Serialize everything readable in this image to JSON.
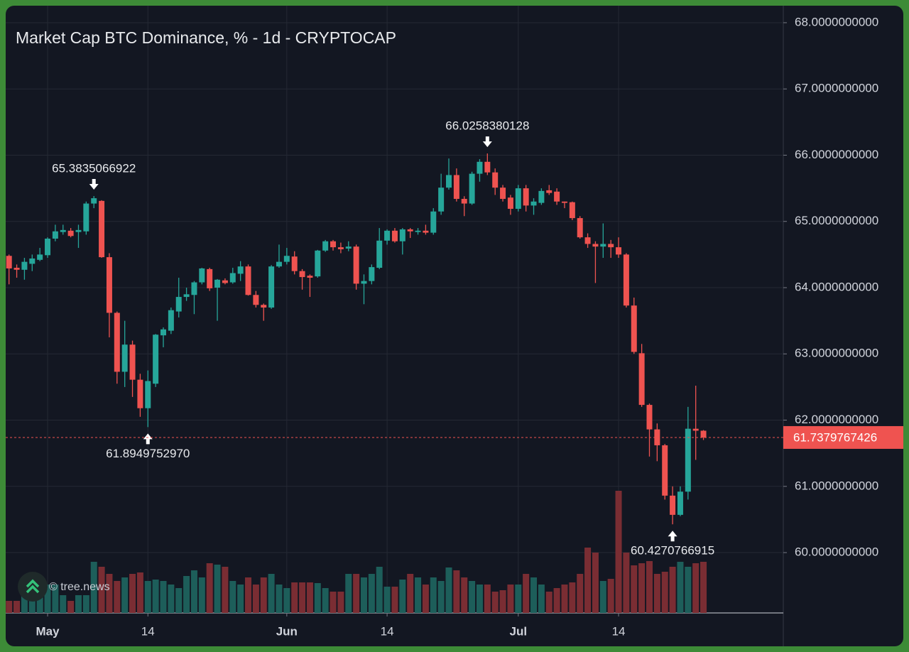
{
  "chart_data": {
    "type": "candlestick",
    "title": "Market Cap BTC Dominance, % - 1d - CRYPTOCAP",
    "watermark": "© tree.news",
    "up_color": "#26a69a",
    "down_color": "#ef5350",
    "volume_up_color": "#1d5e5a",
    "volume_down_color": "#7a2d33",
    "grid": true,
    "x": [
      "04-26",
      "04-27",
      "04-28",
      "04-29",
      "04-30",
      "05-01",
      "05-02",
      "05-03",
      "05-04",
      "05-05",
      "05-06",
      "05-07",
      "05-08",
      "05-09",
      "05-10",
      "05-11",
      "05-12",
      "05-13",
      "05-14",
      "05-15",
      "05-16",
      "05-17",
      "05-18",
      "05-19",
      "05-20",
      "05-21",
      "05-22",
      "05-23",
      "05-24",
      "05-25",
      "05-26",
      "05-27",
      "05-28",
      "05-29",
      "05-30",
      "05-31",
      "06-01",
      "06-02",
      "06-03",
      "06-04",
      "06-05",
      "06-06",
      "06-07",
      "06-08",
      "06-09",
      "06-10",
      "06-11",
      "06-12",
      "06-13",
      "06-14",
      "06-15",
      "06-16",
      "06-17",
      "06-18",
      "06-19",
      "06-20",
      "06-21",
      "06-22",
      "06-23",
      "06-24",
      "06-25",
      "06-26",
      "06-27",
      "06-28",
      "06-29",
      "06-30",
      "07-01",
      "07-02",
      "07-03",
      "07-04",
      "07-05",
      "07-06",
      "07-07",
      "07-08",
      "07-09",
      "07-10",
      "07-11",
      "07-12",
      "07-13",
      "07-14",
      "07-15",
      "07-16",
      "07-17",
      "07-18",
      "07-19",
      "07-20",
      "07-21",
      "07-22",
      "07-23",
      "07-24",
      "07-25"
    ],
    "open": [
      64.48,
      64.3,
      64.27,
      64.36,
      64.42,
      64.49,
      64.74,
      64.84,
      64.86,
      64.84,
      64.85,
      65.27,
      65.31,
      64.46,
      63.62,
      62.73,
      63.14,
      62.61,
      62.18,
      62.55,
      63.28,
      63.35,
      63.64,
      63.86,
      63.89,
      64.08,
      64.28,
      64.0,
      64.11,
      64.08,
      64.21,
      64.32,
      63.89,
      63.74,
      63.7,
      64.32,
      64.39,
      64.47,
      64.25,
      64.18,
      64.17,
      64.56,
      64.7,
      64.61,
      64.59,
      64.62,
      64.06,
      64.1,
      64.3,
      64.71,
      64.86,
      64.7,
      64.88,
      64.84,
      64.86,
      64.83,
      65.15,
      65.51,
      65.7,
      65.34,
      65.27,
      65.72,
      65.9,
      65.74,
      65.51,
      65.36,
      65.19,
      65.5,
      65.24,
      65.28,
      65.47,
      65.45,
      65.3,
      65.29,
      65.05,
      64.76,
      64.66,
      64.62,
      64.66,
      64.61,
      64.5,
      63.73,
      63.01,
      62.23,
      61.86,
      61.62,
      60.86,
      60.57,
      60.92,
      61.87,
      61.84
    ],
    "high": [
      64.5,
      64.35,
      64.45,
      64.5,
      64.6,
      64.76,
      64.95,
      64.95,
      64.9,
      64.95,
      65.3,
      65.3835066922,
      65.32,
      64.52,
      63.64,
      63.5,
      63.2,
      62.7,
      62.75,
      63.3,
      63.4,
      63.7,
      64.15,
      64.0,
      64.1,
      64.3,
      64.3,
      64.13,
      64.14,
      64.3,
      64.4,
      64.35,
      63.95,
      63.76,
      64.34,
      64.65,
      64.6,
      64.55,
      64.28,
      64.2,
      64.57,
      64.72,
      64.72,
      64.68,
      64.7,
      64.65,
      64.2,
      64.35,
      64.9,
      64.88,
      64.9,
      64.9,
      64.9,
      64.9,
      64.95,
      65.2,
      65.72,
      65.95,
      65.8,
      65.38,
      65.75,
      65.94,
      66.0258380128,
      65.8,
      65.55,
      65.4,
      65.55,
      65.55,
      65.35,
      65.5,
      65.55,
      65.5,
      65.3,
      65.3,
      65.08,
      64.82,
      64.7,
      64.97,
      64.72,
      64.76,
      64.52,
      63.85,
      63.15,
      62.25,
      61.95,
      61.64,
      61.0,
      61.0,
      62.2,
      62.52,
      61.85
    ],
    "low": [
      64.05,
      64.15,
      64.12,
      64.25,
      64.4,
      64.45,
      64.7,
      64.8,
      64.76,
      64.6,
      64.8,
      65.2,
      64.45,
      63.25,
      62.55,
      62.5,
      62.35,
      62.05,
      61.894975297,
      62.5,
      63.1,
      63.3,
      63.55,
      63.8,
      63.6,
      64.05,
      63.95,
      63.5,
      64.05,
      64.06,
      64.1,
      63.88,
      63.7,
      63.5,
      63.68,
      64.3,
      64.35,
      64.2,
      63.97,
      63.86,
      64.15,
      64.54,
      64.56,
      64.52,
      64.55,
      63.97,
      63.75,
      64.05,
      64.28,
      64.65,
      64.68,
      64.5,
      64.75,
      64.8,
      64.8,
      64.8,
      65.1,
      65.48,
      65.3,
      65.08,
      65.25,
      65.6,
      65.7,
      65.4,
      65.3,
      65.1,
      65.15,
      65.15,
      65.1,
      65.25,
      65.4,
      65.25,
      65.2,
      65.02,
      64.74,
      64.6,
      64.07,
      64.45,
      64.45,
      64.45,
      63.7,
      63.0,
      62.2,
      61.45,
      61.38,
      60.8,
      60.4270766915,
      60.55,
      60.8,
      61.4,
      61.7
    ],
    "close": [
      64.29,
      64.27,
      64.39,
      64.44,
      64.5,
      64.74,
      64.85,
      64.87,
      64.78,
      64.87,
      65.27,
      65.35,
      64.46,
      63.62,
      62.73,
      63.14,
      62.61,
      62.18,
      62.59,
      63.29,
      63.37,
      63.66,
      63.86,
      63.9,
      64.08,
      64.29,
      63.99,
      64.12,
      64.07,
      64.22,
      64.32,
      63.89,
      63.74,
      63.7,
      64.32,
      64.39,
      64.48,
      64.25,
      64.16,
      64.15,
      64.56,
      64.7,
      64.61,
      64.58,
      64.62,
      64.06,
      64.1,
      64.31,
      64.71,
      64.86,
      64.7,
      64.88,
      64.85,
      64.86,
      64.83,
      65.15,
      65.51,
      65.7,
      65.34,
      65.27,
      65.72,
      65.9,
      65.74,
      65.51,
      65.34,
      65.19,
      65.5,
      65.24,
      65.3,
      65.46,
      65.43,
      65.3,
      65.28,
      65.05,
      64.76,
      64.66,
      64.62,
      64.66,
      64.61,
      64.5,
      63.73,
      63.03,
      62.23,
      61.86,
      61.62,
      60.86,
      60.57,
      60.92,
      61.87,
      61.84,
      61.7379767426
    ],
    "volume": [
      17,
      17,
      30,
      30,
      35,
      40,
      40,
      25,
      17,
      25,
      25,
      72,
      65,
      55,
      45,
      50,
      55,
      57,
      45,
      47,
      45,
      40,
      35,
      52,
      60,
      50,
      70,
      68,
      65,
      45,
      40,
      50,
      40,
      50,
      55,
      40,
      35,
      43,
      43,
      43,
      42,
      35,
      30,
      30,
      55,
      55,
      50,
      55,
      65,
      37,
      37,
      47,
      55,
      50,
      40,
      50,
      45,
      64,
      60,
      50,
      45,
      40,
      40,
      30,
      32,
      40,
      40,
      55,
      50,
      40,
      30,
      35,
      40,
      43,
      55,
      92,
      85,
      45,
      48,
      172,
      85,
      67,
      70,
      73,
      55,
      58,
      65,
      72,
      65,
      70,
      72
    ],
    "ylim": [
      59.089,
      68.257
    ],
    "yticks": [
      {
        "value": 60,
        "label": "60.0000000000"
      },
      {
        "value": 61,
        "label": "61.0000000000"
      },
      {
        "value": 62,
        "label": "62.0000000000"
      },
      {
        "value": 63,
        "label": "63.0000000000"
      },
      {
        "value": 64,
        "label": "64.0000000000"
      },
      {
        "value": 65,
        "label": "65.0000000000"
      },
      {
        "value": 66,
        "label": "66.0000000000"
      },
      {
        "value": 67,
        "label": "67.0000000000"
      },
      {
        "value": 68,
        "label": "68.0000000000"
      }
    ],
    "xticks": [
      {
        "value": "05-01",
        "label": "May"
      },
      {
        "value": "05-14",
        "label": "14"
      },
      {
        "value": "06-01",
        "label": "Jun"
      },
      {
        "value": "06-14",
        "label": "14"
      },
      {
        "value": "07-01",
        "label": "Jul"
      },
      {
        "value": "07-14",
        "label": "14"
      }
    ],
    "annotations": [
      {
        "value": 65.3835066922,
        "label": "65.3835066922"
      },
      {
        "value": 61.894975297,
        "label": "61.8949752970"
      },
      {
        "value": 66.0258380128,
        "label": "66.0258380128"
      },
      {
        "value": 60.4270766915,
        "label": "60.4270766915"
      }
    ],
    "last_price": {
      "value": 61.7379767426,
      "label": "61.7379767426"
    }
  }
}
